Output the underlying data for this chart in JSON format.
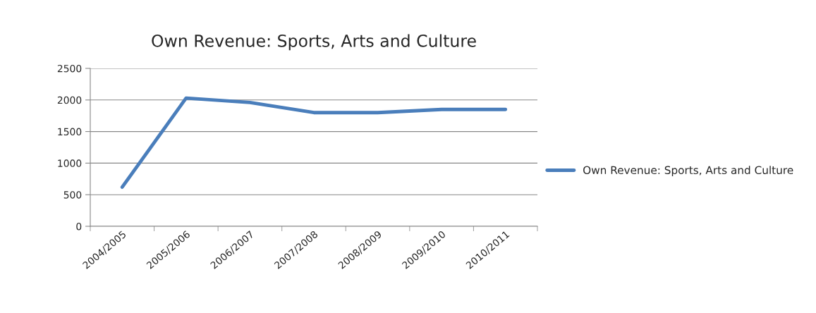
{
  "chart_data": {
    "type": "line",
    "title": "Own Revenue: Sports, Arts and Culture",
    "categories": [
      "2004/2005",
      "2005/2006",
      "2006/2007",
      "2007/2008",
      "2008/2009",
      "2009/2010",
      "2010/2011"
    ],
    "series": [
      {
        "name": "Own Revenue: Sports, Arts and Culture",
        "color": "#4a7ebb",
        "values": [
          620,
          2030,
          1960,
          1800,
          1800,
          1850,
          1850
        ]
      }
    ],
    "ylim": [
      0,
      2500
    ],
    "yticks": [
      0,
      500,
      1000,
      1500,
      2000,
      2500
    ],
    "grid": "y",
    "legend": "right",
    "marker": "none",
    "line_style": "solid"
  }
}
